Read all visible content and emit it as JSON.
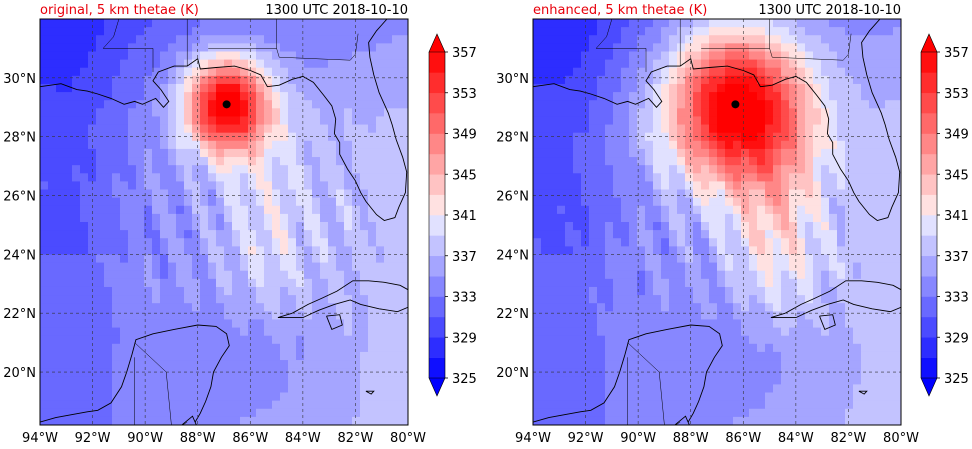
{
  "chart_data": [
    {
      "type": "heatmap",
      "title_left": "original, 5 km thetae (K)",
      "title_right": "1300 UTC 2018-10-10",
      "title_color": "#e8000b",
      "xlim": [
        -94,
        -80
      ],
      "ylim": [
        18.2,
        32.0
      ],
      "x_ticks": [
        -94,
        -92,
        -90,
        -88,
        -86,
        -84,
        -82,
        -80
      ],
      "x_tick_labels": [
        "94°W",
        "92°W",
        "90°W",
        "88°W",
        "86°W",
        "84°W",
        "82°W",
        "80°W"
      ],
      "y_ticks": [
        20,
        22,
        24,
        26,
        28,
        30
      ],
      "y_tick_labels": [
        "20°N",
        "22°N",
        "24°N",
        "26°N",
        "28°N",
        "30°N"
      ],
      "grid": true,
      "hurricane_center": {
        "lon": -86.9,
        "lat": 29.1
      },
      "colorbar": {
        "levels": [
          325,
          327,
          329,
          331,
          333,
          335,
          337,
          339,
          341,
          343,
          345,
          347,
          349,
          351,
          353,
          355,
          357
        ],
        "tick_labels": [
          "325",
          "329",
          "333",
          "337",
          "341",
          "345",
          "349",
          "353",
          "357"
        ],
        "colors": [
          "#0f0fff",
          "#2d2dff",
          "#4b4bff",
          "#6969ff",
          "#8787ff",
          "#a5a5ff",
          "#c3c3ff",
          "#e1e1ff",
          "#ffe1e1",
          "#ffc3c3",
          "#ffa5a5",
          "#ff8787",
          "#ff6969",
          "#ff4b4b",
          "#ff2d2d",
          "#ff0f0f"
        ],
        "extend": "both",
        "min_color": "#0000ff",
        "max_color": "#ff0000"
      }
    },
    {
      "type": "heatmap",
      "title_left": "enhanced, 5 km thetae (K)",
      "title_right": "1300 UTC 2018-10-10",
      "title_color": "#e8000b",
      "xlim": [
        -94,
        -80
      ],
      "ylim": [
        18.2,
        32.0
      ],
      "x_ticks": [
        -94,
        -92,
        -90,
        -88,
        -86,
        -84,
        -82,
        -80
      ],
      "x_tick_labels": [
        "94°W",
        "92°W",
        "90°W",
        "88°W",
        "86°W",
        "84°W",
        "82°W",
        "80°W"
      ],
      "y_ticks": [
        20,
        22,
        24,
        26,
        28,
        30
      ],
      "y_tick_labels": [
        "20°N",
        "22°N",
        "24°N",
        "26°N",
        "28°N",
        "30°N"
      ],
      "grid": true,
      "hurricane_center": {
        "lon": -86.3,
        "lat": 29.1
      },
      "colorbar": {
        "levels": [
          325,
          327,
          329,
          331,
          333,
          335,
          337,
          339,
          341,
          343,
          345,
          347,
          349,
          351,
          353,
          355,
          357
        ],
        "tick_labels": [
          "325",
          "329",
          "333",
          "337",
          "341",
          "345",
          "349",
          "353",
          "357"
        ],
        "colors": [
          "#0f0fff",
          "#2d2dff",
          "#4b4bff",
          "#6969ff",
          "#8787ff",
          "#a5a5ff",
          "#c3c3ff",
          "#e1e1ff",
          "#ffe1e1",
          "#ffc3c3",
          "#ffa5a5",
          "#ff8787",
          "#ff6969",
          "#ff4b4b",
          "#ff2d2d",
          "#ff0f0f"
        ],
        "extend": "both",
        "min_color": "#0000ff",
        "max_color": "#ff0000"
      }
    }
  ]
}
